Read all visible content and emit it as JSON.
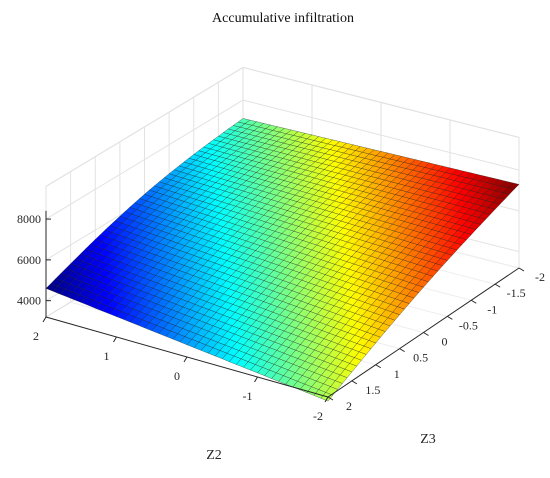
{
  "chart_data": {
    "type": "surface",
    "title": "Accumulative infiltration",
    "xlabel": "Z2",
    "ylabel": "Z3",
    "zlabel": "",
    "x_ticks": [
      "2",
      "1",
      "0",
      "-1",
      "-2"
    ],
    "y_ticks": [
      "-2",
      "-1.5",
      "-1",
      "-0.5",
      "0",
      "0.5",
      "1",
      "1.5",
      "2"
    ],
    "z_ticks": [
      "4000",
      "6000",
      "8000"
    ],
    "xlim": [
      -2,
      2
    ],
    "ylim": [
      -2,
      2
    ],
    "zlim": [
      3200,
      9600
    ],
    "colormap": "jet",
    "grid": true,
    "corner_values": [
      {
        "Z2": 2,
        "Z3": 2,
        "value": 4600
      },
      {
        "Z2": -2,
        "Z3": 2,
        "value": 3000
      },
      {
        "Z2": 2,
        "Z3": -2,
        "value": 7100
      },
      {
        "Z2": -2,
        "Z3": -2,
        "value": 7300
      }
    ],
    "mesh_lines": 40
  }
}
